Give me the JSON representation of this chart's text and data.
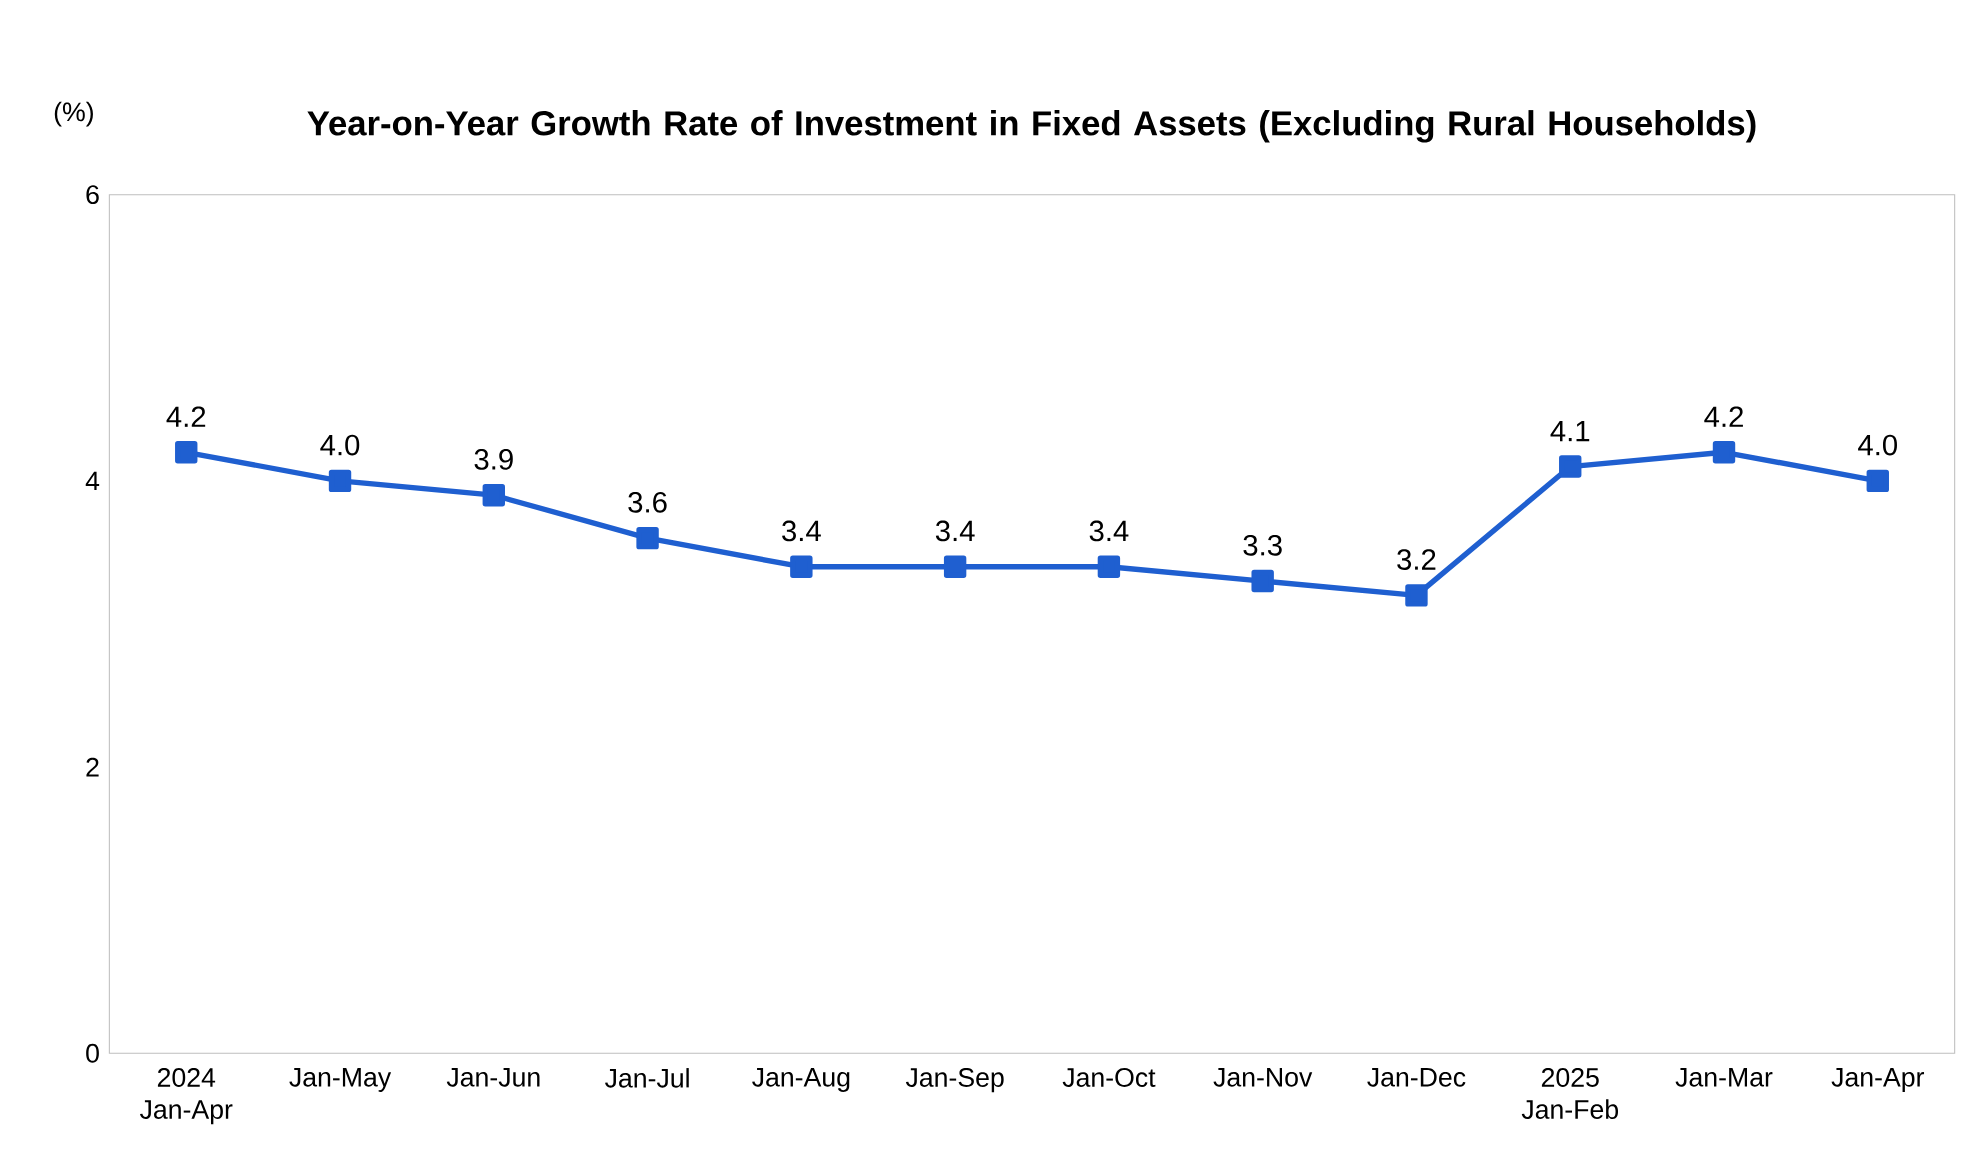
{
  "chart_data": {
    "type": "line",
    "title": "Year-on-Year Growth Rate of Investment in Fixed Assets (Excluding Rural Households)",
    "ylabel": "(%)",
    "categories": [
      "2024 Jan-Apr",
      "Jan-May",
      "Jan-Jun",
      "Jan-Jul",
      "Jan-Aug",
      "Jan-Sep",
      "Jan-Oct",
      "Jan-Nov",
      "Jan-Dec",
      "2025 Jan-Feb",
      "Jan-Mar",
      "Jan-Apr"
    ],
    "series": [
      {
        "color": "#1f5fd0",
        "values": [
          4.2,
          4.0,
          3.9,
          3.6,
          3.4,
          3.4,
          3.4,
          3.3,
          3.2,
          4.1,
          4.2,
          4.0
        ],
        "value_labels": [
          "4.2",
          "4.0",
          "3.9",
          "3.6",
          "3.4",
          "3.4",
          "3.4",
          "3.3",
          "3.2",
          "4.1",
          "4.2",
          "4.0"
        ]
      }
    ],
    "ylim": [
      0,
      6
    ],
    "yticks": [
      0,
      2,
      4,
      6
    ],
    "marker": "square",
    "line_style": "solid"
  }
}
